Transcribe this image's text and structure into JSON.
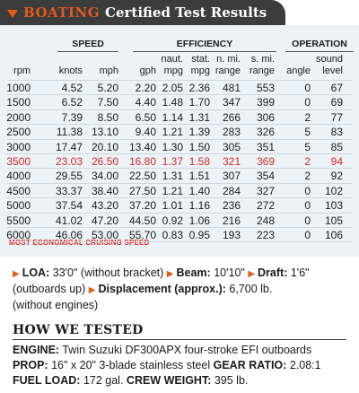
{
  "header": {
    "brand": "BOATING",
    "title": "Certified Test Results"
  },
  "table": {
    "groups": {
      "speed": "SPEED",
      "efficiency": "EFFICIENCY",
      "operation": "OPERATION"
    },
    "columns": [
      [
        "rpm"
      ],
      [
        "knots"
      ],
      [
        "mph"
      ],
      [
        "gph"
      ],
      [
        "naut.",
        "mpg"
      ],
      [
        "stat.",
        "mpg"
      ],
      [
        "n. mi.",
        "range"
      ],
      [
        "s. mi.",
        "range"
      ],
      [
        "angle"
      ],
      [
        "sound",
        "level"
      ]
    ],
    "rows": [
      [
        "1000",
        "4.52",
        "5.20",
        "2.20",
        "2.05",
        "2.36",
        "481",
        "553",
        "0",
        "67"
      ],
      [
        "1500",
        "6.52",
        "7.50",
        "4.40",
        "1.48",
        "1.70",
        "347",
        "399",
        "0",
        "69"
      ],
      [
        "2000",
        "7.39",
        "8.50",
        "6.50",
        "1.14",
        "1.31",
        "266",
        "306",
        "2",
        "77"
      ],
      [
        "2500",
        "11.38",
        "13.10",
        "9.40",
        "1.21",
        "1.39",
        "283",
        "326",
        "5",
        "83"
      ],
      [
        "3000",
        "17.47",
        "20.10",
        "13.40",
        "1.30",
        "1.50",
        "305",
        "351",
        "5",
        "85"
      ],
      [
        "3500",
        "23.03",
        "26.50",
        "16.80",
        "1.37",
        "1.58",
        "321",
        "369",
        "2",
        "94"
      ],
      [
        "4000",
        "29.55",
        "34.00",
        "22.50",
        "1.31",
        "1.51",
        "307",
        "354",
        "2",
        "92"
      ],
      [
        "4500",
        "33.37",
        "38.40",
        "27.50",
        "1.21",
        "1.40",
        "284",
        "327",
        "0",
        "102"
      ],
      [
        "5000",
        "37.54",
        "43.20",
        "37.20",
        "1.01",
        "1.16",
        "236",
        "272",
        "0",
        "103"
      ],
      [
        "5500",
        "41.02",
        "47.20",
        "44.50",
        "0.92",
        "1.06",
        "216",
        "248",
        "0",
        "105"
      ],
      [
        "6000",
        "46.06",
        "53.00",
        "55.70",
        "0.83",
        "0.95",
        "193",
        "223",
        "0",
        "106"
      ]
    ],
    "highlight_row": 5,
    "footnote": "MOST ECONOMICAL CRUISING SPEED",
    "highlight_color": "#d6281f"
  },
  "specs": {
    "loa_label": "LOA:",
    "loa_value": "33'0\" (without bracket)",
    "beam_label": "Beam:",
    "beam_value": "10'10\"",
    "draft_label": "Draft:",
    "draft_value": "1'6\"",
    "draft_note": "(outboards up)",
    "disp_label": "Displacement (approx.):",
    "disp_value": "6,700 lb.",
    "disp_note": "(without engines)"
  },
  "how_we_tested": {
    "title": "HOW WE TESTED",
    "engine_label": "ENGINE:",
    "engine_value": "Twin Suzuki DF300APX four-stroke EFI outboards",
    "prop_label": "PROP:",
    "prop_value": "16\" x 20\" 3-blade stainless steel",
    "gear_label": "GEAR RATIO:",
    "gear_value": "2.08:1",
    "fuel_label": "FUEL LOAD:",
    "fuel_value": "172 gal.",
    "crew_label": "CREW WEIGHT:",
    "crew_value": "395 lb."
  },
  "colors": {
    "accent": "#e25a1c",
    "header_bg": "#3c3c3c",
    "panel_bg": "#ecf3f8"
  }
}
